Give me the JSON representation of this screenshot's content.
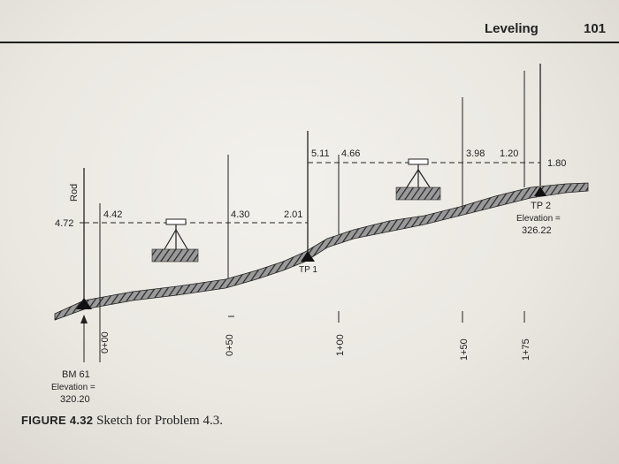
{
  "header": {
    "running_head": "Leveling",
    "page_number": "101"
  },
  "figure": {
    "caption_label": "FIGURE 4.32",
    "caption_text": "Sketch for Problem 4.3.",
    "rod_label": "Rod",
    "readings": {
      "bm_rod": "4.72",
      "first_setup_fs_a": "4.42",
      "first_setup_fs_b": "4.30",
      "first_setup_fs_tp1": "2.01",
      "second_setup_bs_tp1": "5.11",
      "second_setup_fs_a": "4.66",
      "second_setup_fs_b": "3.98",
      "second_setup_fs_c": "1.20",
      "tp2_rod": "1.80"
    },
    "stations": [
      "0+00",
      "0+50",
      "1+00",
      "1+50",
      "1+75"
    ],
    "benchmark": {
      "name": "BM 61",
      "elevation_label": "Elevation =",
      "elevation": "320.20"
    },
    "turning_point_1": {
      "name": "TP 1"
    },
    "turning_point_2": {
      "name": "TP 2",
      "elevation_label": "Elevation =",
      "elevation": "326.22"
    }
  }
}
